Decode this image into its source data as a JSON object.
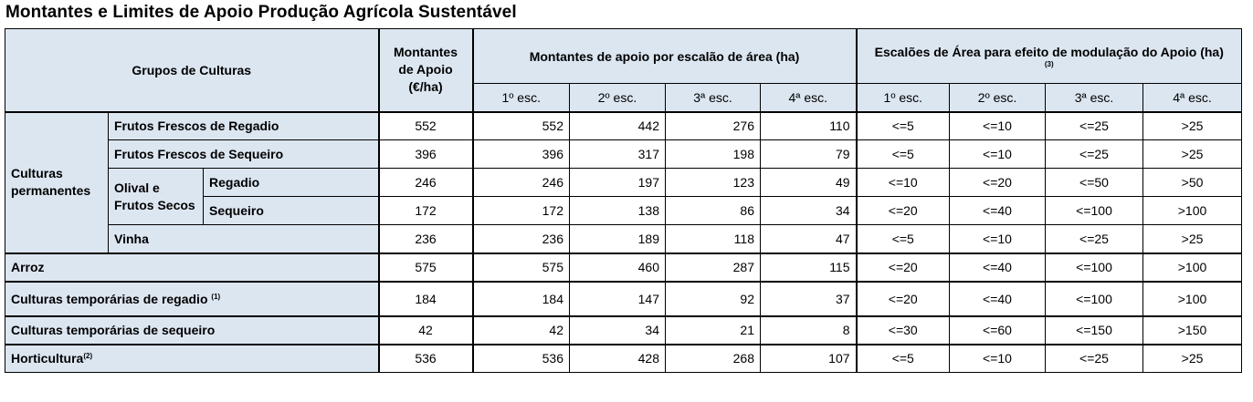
{
  "title": "Montantes e Limites de Apoio Produção Agrícola Sustentável",
  "header": {
    "grupos": "Grupos de Culturas",
    "montantes_l1": "Montantes",
    "montantes_l2": "de Apoio",
    "montantes_l3": "(€/ha)",
    "escalao_area": "Montantes de apoio por escalão de área (ha)",
    "modulacao": "Escalões de Área para efeito de modulação do Apoio (ha)",
    "modulacao_note": "(3)",
    "esc": [
      "1º esc.",
      "2º esc.",
      "3ª esc.",
      "4ª esc.",
      "1º esc.",
      "2º esc.",
      "3ª esc.",
      "4ª esc."
    ]
  },
  "groups": {
    "permanentes": "Culturas permanentes",
    "olival": "Olival e Frutos Secos"
  },
  "rows": [
    {
      "label": "Frutos Frescos de Regadio",
      "montante": "552",
      "apoio": [
        "552",
        "442",
        "276",
        "110"
      ],
      "escaloes": [
        "<=5",
        "<=10",
        "<=25",
        ">25"
      ]
    },
    {
      "label": "Frutos Frescos de Sequeiro",
      "montante": "396",
      "apoio": [
        "396",
        "317",
        "198",
        "79"
      ],
      "escaloes": [
        "<=5",
        "<=10",
        "<=25",
        ">25"
      ]
    },
    {
      "label": "Regadio",
      "montante": "246",
      "apoio": [
        "246",
        "197",
        "123",
        "49"
      ],
      "escaloes": [
        "<=10",
        "<=20",
        "<=50",
        ">50"
      ]
    },
    {
      "label": "Sequeiro",
      "montante": "172",
      "apoio": [
        "172",
        "138",
        "86",
        "34"
      ],
      "escaloes": [
        "<=20",
        "<=40",
        "<=100",
        ">100"
      ]
    },
    {
      "label": "Vinha",
      "montante": "236",
      "apoio": [
        "236",
        "189",
        "118",
        "47"
      ],
      "escaloes": [
        "<=5",
        "<=10",
        "<=25",
        ">25"
      ]
    },
    {
      "label": "Arroz",
      "montante": "575",
      "apoio": [
        "575",
        "460",
        "287",
        "115"
      ],
      "escaloes": [
        "<=20",
        "<=40",
        "<=100",
        ">100"
      ]
    },
    {
      "label": "Culturas temporárias de regadio",
      "note": "(1)",
      "montante": "184",
      "apoio": [
        "184",
        "147",
        "92",
        "37"
      ],
      "escaloes": [
        "<=20",
        "<=40",
        "<=100",
        ">100"
      ]
    },
    {
      "label": "Culturas temporárias de sequeiro",
      "montante": "42",
      "apoio": [
        "42",
        "34",
        "21",
        "8"
      ],
      "escaloes": [
        "<=30",
        "<=60",
        "<=150",
        ">150"
      ]
    },
    {
      "label": "Horticultura",
      "note": "(2)",
      "montante": "536",
      "apoio": [
        "536",
        "428",
        "268",
        "107"
      ],
      "escaloes": [
        "<=5",
        "<=10",
        "<=25",
        ">25"
      ]
    }
  ],
  "colors": {
    "header_bg": "#dce6f1",
    "border": "#000000"
  }
}
